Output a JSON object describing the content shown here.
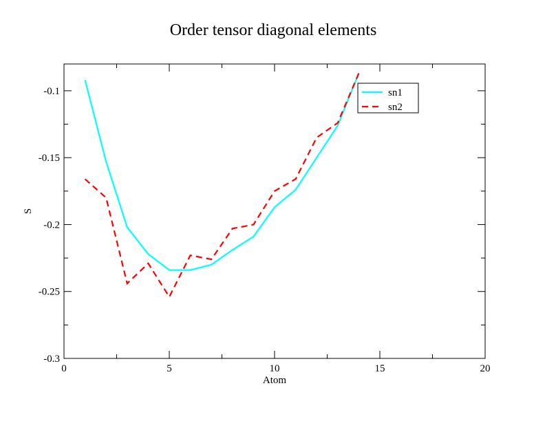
{
  "chart_data": {
    "type": "line",
    "title": "Order tensor diagonal elements",
    "xlabel": "Atom",
    "ylabel": "S",
    "xlim": [
      0,
      20
    ],
    "ylim": [
      -0.3,
      -0.08
    ],
    "xticks": [
      0,
      5,
      10,
      15,
      20
    ],
    "xtick_labels": [
      "0",
      "5",
      "10",
      "15",
      "20"
    ],
    "yticks": [
      -0.3,
      -0.25,
      -0.2,
      -0.15,
      -0.1
    ],
    "ytick_labels": [
      "-0.3",
      "-0.25",
      "-0.2",
      "-0.15",
      "-0.1"
    ],
    "grid": false,
    "legend_position": "top-right",
    "series": [
      {
        "name": "sn1",
        "color": "#00ffff",
        "style": "solid",
        "x": [
          1,
          2,
          3,
          4,
          5,
          6,
          7,
          8,
          9,
          10,
          11,
          12,
          13,
          14
        ],
        "y": [
          -0.092,
          -0.153,
          -0.202,
          -0.222,
          -0.234,
          -0.234,
          -0.23,
          -0.219,
          -0.209,
          -0.187,
          -0.174,
          -0.15,
          -0.126,
          -0.087
        ]
      },
      {
        "name": "sn2",
        "color": "#ff0000",
        "style": "dashed",
        "x": [
          1,
          2,
          3,
          4,
          5,
          6,
          7,
          8,
          9,
          10,
          11,
          12,
          13,
          14
        ],
        "y": [
          -0.166,
          -0.18,
          -0.244,
          -0.229,
          -0.254,
          -0.223,
          -0.226,
          -0.203,
          -0.2,
          -0.175,
          -0.166,
          -0.135,
          -0.124,
          -0.087
        ]
      }
    ]
  }
}
